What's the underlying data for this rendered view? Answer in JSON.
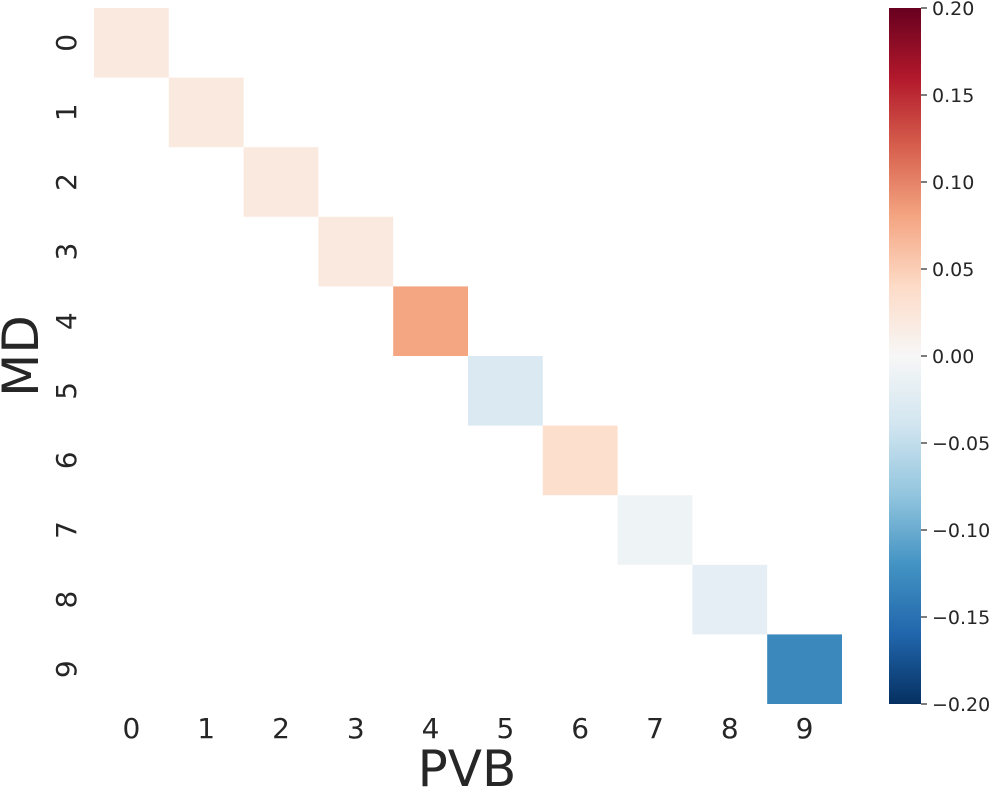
{
  "chart_data": {
    "type": "heatmap",
    "xlabel": "PVB",
    "ylabel": "MD",
    "x_categories": [
      "0",
      "1",
      "2",
      "3",
      "4",
      "5",
      "6",
      "7",
      "8",
      "9"
    ],
    "y_categories": [
      "0",
      "1",
      "2",
      "3",
      "4",
      "5",
      "6",
      "7",
      "8",
      "9"
    ],
    "colormap": "RdBu_r",
    "vmin": -0.2,
    "vmax": 0.2,
    "colorbar_ticks": [
      "0.20",
      "0.15",
      "0.10",
      "0.05",
      "0.00",
      "−0.05",
      "−0.10",
      "−0.15",
      "−0.20"
    ],
    "colorbar_tick_values": [
      0.2,
      0.15,
      0.1,
      0.05,
      0.0,
      -0.05,
      -0.1,
      -0.15,
      -0.2
    ],
    "masked": "off-diagonal cells are blank",
    "cells": [
      {
        "row": 0,
        "col": 0,
        "value": 0.02
      },
      {
        "row": 1,
        "col": 1,
        "value": 0.02
      },
      {
        "row": 2,
        "col": 2,
        "value": 0.02
      },
      {
        "row": 3,
        "col": 3,
        "value": 0.02
      },
      {
        "row": 4,
        "col": 4,
        "value": 0.08
      },
      {
        "row": 5,
        "col": 5,
        "value": -0.03
      },
      {
        "row": 6,
        "col": 6,
        "value": 0.035
      },
      {
        "row": 7,
        "col": 7,
        "value": -0.01
      },
      {
        "row": 8,
        "col": 8,
        "value": -0.02
      },
      {
        "row": 9,
        "col": 9,
        "value": -0.13
      }
    ]
  }
}
